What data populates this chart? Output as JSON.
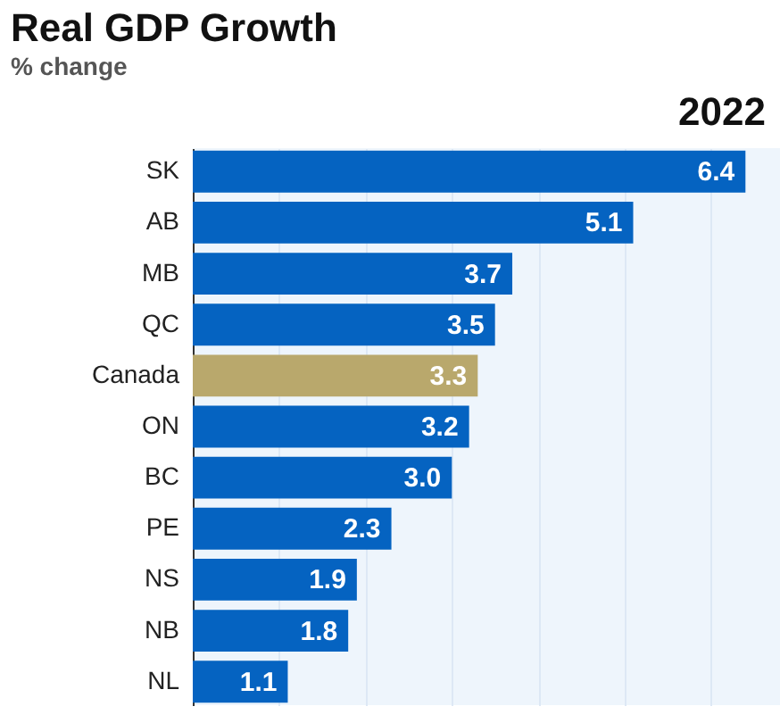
{
  "chart_data": {
    "type": "bar",
    "orientation": "horizontal",
    "title": "Real GDP Growth",
    "subtitle": "% change",
    "annotations": [
      "2022"
    ],
    "categories": [
      "SK",
      "AB",
      "MB",
      "QC",
      "Canada",
      "ON",
      "BC",
      "PE",
      "NS",
      "NB",
      "NL"
    ],
    "values": [
      6.4,
      5.1,
      3.7,
      3.5,
      3.3,
      3.2,
      3.0,
      2.3,
      1.9,
      1.8,
      1.1
    ],
    "value_labels": [
      "6.4",
      "5.1",
      "3.7",
      "3.5",
      "3.3",
      "3.2",
      "3.0",
      "2.3",
      "1.9",
      "1.8",
      "1.1"
    ],
    "colors": [
      "#0563c1",
      "#0563c1",
      "#0563c1",
      "#0563c1",
      "#b9a86c",
      "#0563c1",
      "#0563c1",
      "#0563c1",
      "#0563c1",
      "#0563c1",
      "#0563c1"
    ],
    "xlim": [
      0,
      6.8
    ],
    "xticks": [
      {
        "value": 0,
        "label": null
      },
      {
        "value": 1,
        "label": null
      },
      {
        "value": 2,
        "label": null
      },
      {
        "value": 3,
        "label": null
      },
      {
        "value": 4,
        "label": null
      },
      {
        "value": 5,
        "label": null
      },
      {
        "value": 6,
        "label": null
      }
    ],
    "grid": "x",
    "tick_labels": "y"
  }
}
